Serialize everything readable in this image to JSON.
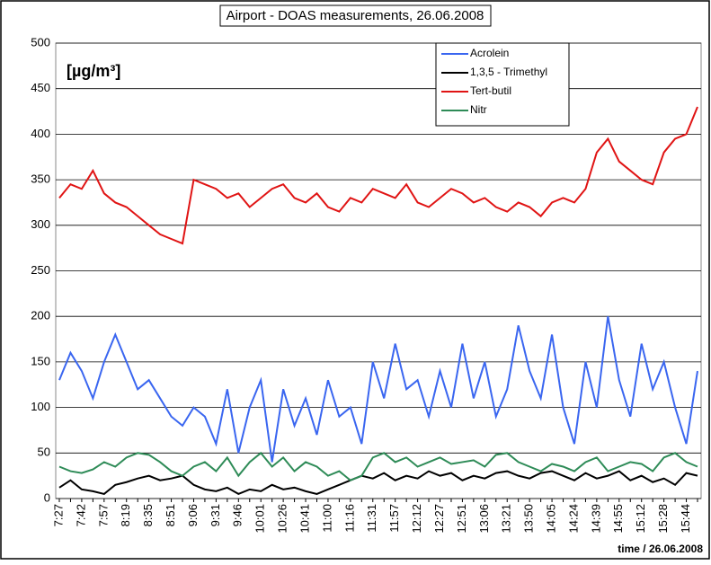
{
  "chart_data": {
    "type": "line",
    "title": "Airport - DOAS measurements, 26.06.2008",
    "unit_label": "[µg/m³]",
    "x_label": "time / 26.06.2008",
    "categories": [
      "7:27",
      null,
      "7:42",
      null,
      "7:57",
      null,
      "8:19",
      null,
      "8:35",
      null,
      "8:51",
      null,
      "9:06",
      null,
      "9:31",
      null,
      "9:46",
      null,
      "10:01",
      null,
      "10:26",
      null,
      "10:41",
      null,
      "11:00",
      null,
      "11:16",
      null,
      "11:31",
      null,
      "11:57",
      null,
      "12:12",
      null,
      "12:27",
      null,
      "12:51",
      null,
      "13:06",
      null,
      "13:21",
      null,
      "13:50",
      null,
      "14:05",
      null,
      "14:24",
      null,
      "14:39",
      null,
      "14:55",
      null,
      "15:12",
      null,
      "15:28",
      null,
      "15:44",
      null
    ],
    "series": [
      {
        "name": "Acrolein",
        "color": "#3a66f0",
        "values": [
          130,
          160,
          140,
          110,
          150,
          180,
          150,
          120,
          130,
          110,
          90,
          80,
          100,
          90,
          60,
          120,
          50,
          100,
          130,
          40,
          120,
          80,
          110,
          70,
          130,
          90,
          100,
          60,
          150,
          110,
          170,
          120,
          130,
          90,
          140,
          100,
          170,
          110,
          150,
          90,
          120,
          190,
          140,
          110,
          180,
          100,
          60,
          150,
          100,
          200,
          130,
          90,
          170,
          120,
          150,
          100,
          60,
          140
        ]
      },
      {
        "name": "1,3,5 - Trimethyl",
        "color": "#000000",
        "values": [
          12,
          20,
          10,
          8,
          5,
          15,
          18,
          22,
          25,
          20,
          22,
          25,
          15,
          10,
          8,
          12,
          5,
          10,
          8,
          15,
          10,
          12,
          8,
          5,
          10,
          15,
          20,
          25,
          22,
          28,
          20,
          25,
          22,
          30,
          25,
          28,
          20,
          25,
          22,
          28,
          30,
          25,
          22,
          28,
          30,
          25,
          20,
          28,
          22,
          25,
          30,
          20,
          25,
          18,
          22,
          15,
          28,
          25
        ]
      },
      {
        "name": "Tert-butil",
        "color": "#e01414",
        "values": [
          330,
          345,
          340,
          360,
          335,
          325,
          320,
          310,
          300,
          290,
          285,
          280,
          350,
          345,
          340,
          330,
          335,
          320,
          330,
          340,
          345,
          330,
          325,
          335,
          320,
          315,
          330,
          325,
          340,
          335,
          330,
          345,
          325,
          320,
          330,
          340,
          335,
          325,
          330,
          320,
          315,
          325,
          320,
          310,
          325,
          330,
          325,
          340,
          380,
          395,
          370,
          360,
          350,
          345,
          380,
          395,
          400,
          430
        ]
      },
      {
        "name": "Nitr",
        "color": "#2e8b57",
        "values": [
          35,
          30,
          28,
          32,
          40,
          35,
          45,
          50,
          48,
          40,
          30,
          25,
          35,
          40,
          30,
          45,
          25,
          40,
          50,
          35,
          45,
          30,
          40,
          35,
          25,
          30,
          20,
          25,
          45,
          50,
          40,
          45,
          35,
          40,
          45,
          38,
          40,
          42,
          35,
          48,
          50,
          40,
          35,
          30,
          38,
          35,
          30,
          40,
          45,
          30,
          35,
          40,
          38,
          30,
          45,
          50,
          40,
          35
        ]
      }
    ],
    "ylim": [
      0,
      500
    ],
    "yticks": [
      0,
      50,
      100,
      150,
      200,
      250,
      300,
      350,
      400,
      450,
      500
    ],
    "grid": true,
    "legend": "upper right"
  }
}
